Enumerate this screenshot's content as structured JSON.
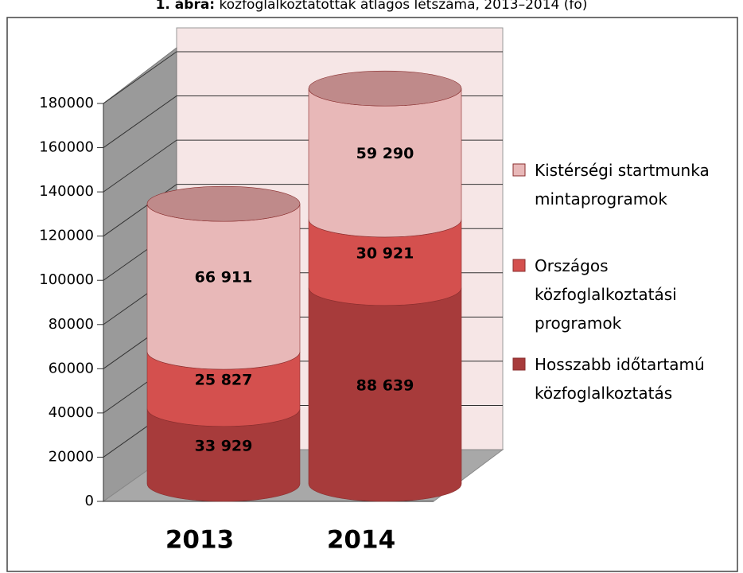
{
  "chart_data": {
    "type": "stacked-cylinder",
    "figure_label": "1. ábra:",
    "title": "közfoglalkoztatottak átlagos létszáma, 2013–2014 (fő)",
    "categories": [
      "2013",
      "2014"
    ],
    "series": [
      {
        "name": "Hosszabb időtartamú közfoglalkoztatás",
        "color": "#a73b3b",
        "values": [
          33929,
          88639
        ],
        "value_labels": [
          "33 929",
          "88 639"
        ]
      },
      {
        "name": "Országos közfoglalkoztatási programok",
        "color": "#d4504e",
        "values": [
          25827,
          30921
        ],
        "value_labels": [
          "25 827",
          "30 921"
        ]
      },
      {
        "name": "Kistérségi startmunka mintaprogramok",
        "color": "#e8b8b8",
        "values": [
          66911,
          59290
        ],
        "value_labels": [
          "66 911",
          "59 290"
        ]
      }
    ],
    "ylim": [
      0,
      180000
    ],
    "yticks": [
      0,
      20000,
      40000,
      60000,
      80000,
      100000,
      120000,
      140000,
      160000,
      180000
    ],
    "grid": true
  }
}
